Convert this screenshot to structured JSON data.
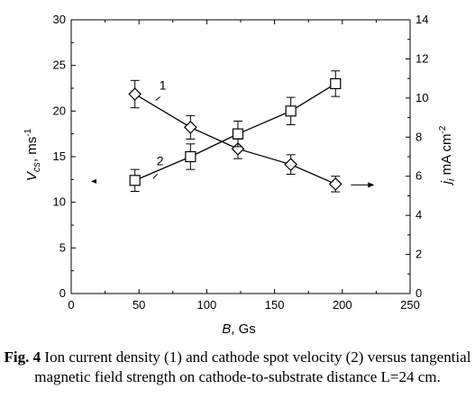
{
  "chart_data": {
    "type": "scatter",
    "x": [
      47,
      88,
      123,
      162,
      195
    ],
    "series": [
      {
        "name": "1",
        "axis": "right",
        "marker": "diamond",
        "values": [
          10.2,
          8.5,
          7.4,
          6.6,
          5.6
        ],
        "errors": [
          0.7,
          0.6,
          0.5,
          0.5,
          0.4
        ]
      },
      {
        "name": "2",
        "axis": "left",
        "marker": "square",
        "values": [
          12.4,
          15,
          17.5,
          20,
          23
        ],
        "errors": [
          1.2,
          1.4,
          1.4,
          1.5,
          1.4
        ]
      }
    ],
    "xlabel": {
      "symbol": "B",
      "unit": ", Gs"
    },
    "ylabel_left": {
      "symbol": "V",
      "subscript": "cs",
      "unit": ", ms",
      "exponent": "-1"
    },
    "ylabel_right": {
      "symbol": "j",
      "subscript": "i",
      "unit": " mA cm",
      "exponent": "-2"
    },
    "xlim": [
      0,
      250
    ],
    "ylim_left": [
      0,
      30
    ],
    "ylim_right": [
      0,
      14
    ],
    "xticks": [
      "0",
      "50",
      "100",
      "150",
      "200",
      "250"
    ],
    "yticks_left": [
      "0",
      "5",
      "10",
      "15",
      "20",
      "25",
      "30"
    ],
    "yticks_right": [
      "0",
      "2",
      "4",
      "6",
      "8",
      "10",
      "12",
      "14"
    ],
    "grid": false
  },
  "caption": {
    "label": "Fig. 4",
    "text": " Ion current density (1) and cathode spot velocity (2) versus tangential magnetic field strength on cathode-to-substrate distance L=24 cm."
  }
}
